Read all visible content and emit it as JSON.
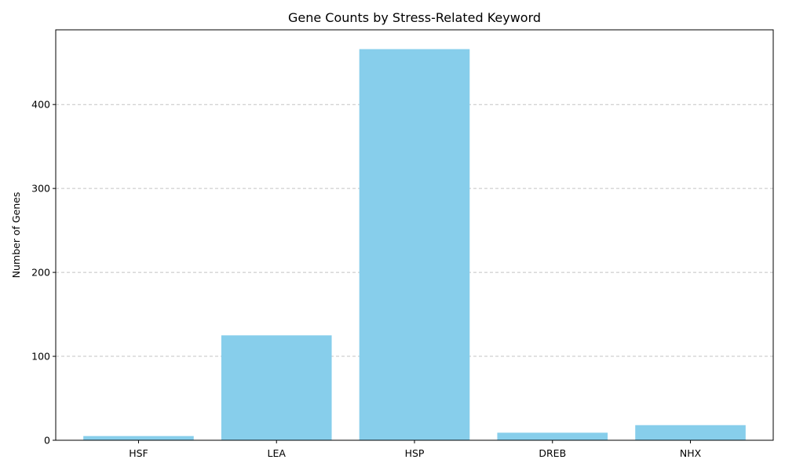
{
  "colors": {
    "bar": "#87ceeb",
    "grid": "#c4c4c4",
    "axis": "#000000",
    "background": "#ffffff"
  },
  "chart_data": {
    "type": "bar",
    "title": "Gene Counts by Stress-Related Keyword",
    "xlabel": "",
    "ylabel": "Number of Genes",
    "categories": [
      "HSF",
      "LEA",
      "HSP",
      "DREB",
      "NHX"
    ],
    "values": [
      5,
      125,
      466,
      9,
      18
    ],
    "ylim": [
      0,
      489
    ],
    "yticks": [
      0,
      100,
      200,
      300,
      400
    ],
    "grid": "y-dashed",
    "legend": "none"
  }
}
